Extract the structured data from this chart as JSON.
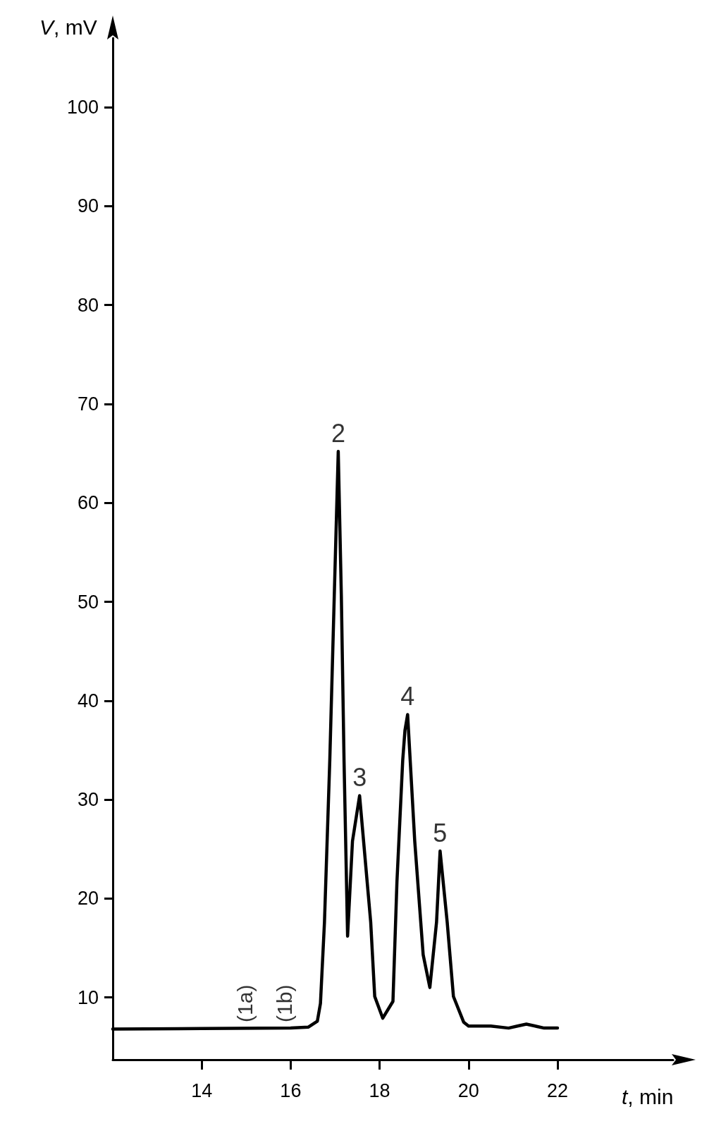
{
  "chart_data": {
    "type": "line",
    "xlabel": "t, min",
    "ylabel": "V, mV",
    "x": [
      12,
      14,
      16,
      16.4,
      16.6,
      16.67,
      16.76,
      16.88,
      16.98,
      17.07,
      17.14,
      17.2,
      17.28,
      17.39,
      17.55,
      17.8,
      17.89,
      18.07,
      18.3,
      18.39,
      18.52,
      18.57,
      18.63,
      18.79,
      18.98,
      19.13,
      19.28,
      19.36,
      19.52,
      19.66,
      19.89,
      20,
      20.5,
      20.9,
      21.1,
      21.3,
      21.5,
      21.7,
      22
    ],
    "series": [
      {
        "color": "#000000",
        "values": [
          6.8,
          6.85,
          6.9,
          7.0,
          7.6,
          9.4,
          17.6,
          34,
          50.5,
          65.2,
          50.5,
          34,
          16.2,
          25.8,
          30.4,
          17.6,
          10.1,
          7.9,
          9.6,
          21.7,
          34,
          37,
          38.6,
          25.8,
          14.3,
          11.0,
          17.6,
          24.8,
          17.6,
          10.1,
          7.5,
          7.1,
          7.1,
          6.9,
          7.1,
          7.3,
          7.1,
          6.9,
          6.9
        ]
      }
    ],
    "xlim": [
      12,
      24.6
    ],
    "xticks": [
      14,
      16,
      18,
      20,
      22
    ],
    "ylim": [
      3.7,
      107
    ],
    "yticks": [
      10,
      20,
      30,
      40,
      50,
      60,
      70,
      80,
      90,
      100
    ],
    "grid": false,
    "marker": "none",
    "line_style": "solid",
    "annotations": [
      {
        "text": "(1a)",
        "x": 14.97,
        "y": 7.2
      },
      {
        "text": "(1b)",
        "x": 15.86,
        "y": 7.2
      },
      {
        "text": "2",
        "x": 17.07,
        "y": 65.2
      },
      {
        "text": "3",
        "x": 17.55,
        "y": 30.4
      },
      {
        "text": "4",
        "x": 18.63,
        "y": 38.6
      },
      {
        "text": "5",
        "x": 19.36,
        "y": 24.8
      }
    ]
  }
}
